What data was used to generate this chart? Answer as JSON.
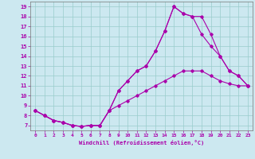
{
  "xlabel": "Windchill (Refroidissement éolien,°C)",
  "background_color": "#cce8f0",
  "grid_color": "#99cccc",
  "line_color": "#aa00aa",
  "xlim": [
    -0.5,
    23.5
  ],
  "ylim": [
    6.5,
    19.5
  ],
  "xticks": [
    0,
    1,
    2,
    3,
    4,
    5,
    6,
    7,
    8,
    9,
    10,
    11,
    12,
    13,
    14,
    15,
    16,
    17,
    18,
    19,
    20,
    21,
    22,
    23
  ],
  "yticks": [
    7,
    8,
    9,
    10,
    11,
    12,
    13,
    14,
    15,
    16,
    17,
    18,
    19
  ],
  "line1_x": [
    0,
    1,
    2,
    3,
    4,
    5,
    6,
    7,
    8,
    9,
    10,
    11,
    12,
    13,
    14,
    15,
    16,
    17,
    18,
    19,
    20,
    21,
    22,
    23
  ],
  "line1_y": [
    8.5,
    8.0,
    7.5,
    7.3,
    7.0,
    6.9,
    7.0,
    7.0,
    8.5,
    9.0,
    9.5,
    10.0,
    10.5,
    11.0,
    11.5,
    12.0,
    12.5,
    12.5,
    12.5,
    12.0,
    11.5,
    11.2,
    11.0,
    11.0
  ],
  "line2_x": [
    0,
    1,
    2,
    3,
    4,
    5,
    6,
    7,
    8,
    9,
    10,
    11,
    12,
    13,
    14,
    15,
    16,
    17,
    18,
    19,
    20,
    21,
    22,
    23
  ],
  "line2_y": [
    8.5,
    8.0,
    7.5,
    7.3,
    7.0,
    6.9,
    7.0,
    7.0,
    8.5,
    10.5,
    11.5,
    12.5,
    13.0,
    14.5,
    16.5,
    19.0,
    18.3,
    18.0,
    16.2,
    15.0,
    14.0,
    12.5,
    12.0,
    11.0
  ],
  "line3_x": [
    0,
    1,
    2,
    3,
    4,
    5,
    6,
    7,
    8,
    9,
    10,
    11,
    12,
    13,
    14,
    15,
    16,
    17,
    18,
    19,
    20,
    21,
    22,
    23
  ],
  "line3_y": [
    8.5,
    8.0,
    7.5,
    7.3,
    7.0,
    6.9,
    7.0,
    7.0,
    8.5,
    10.5,
    11.5,
    12.5,
    13.0,
    14.5,
    16.5,
    19.0,
    18.3,
    18.0,
    18.0,
    16.2,
    14.0,
    12.5,
    12.0,
    11.0
  ]
}
